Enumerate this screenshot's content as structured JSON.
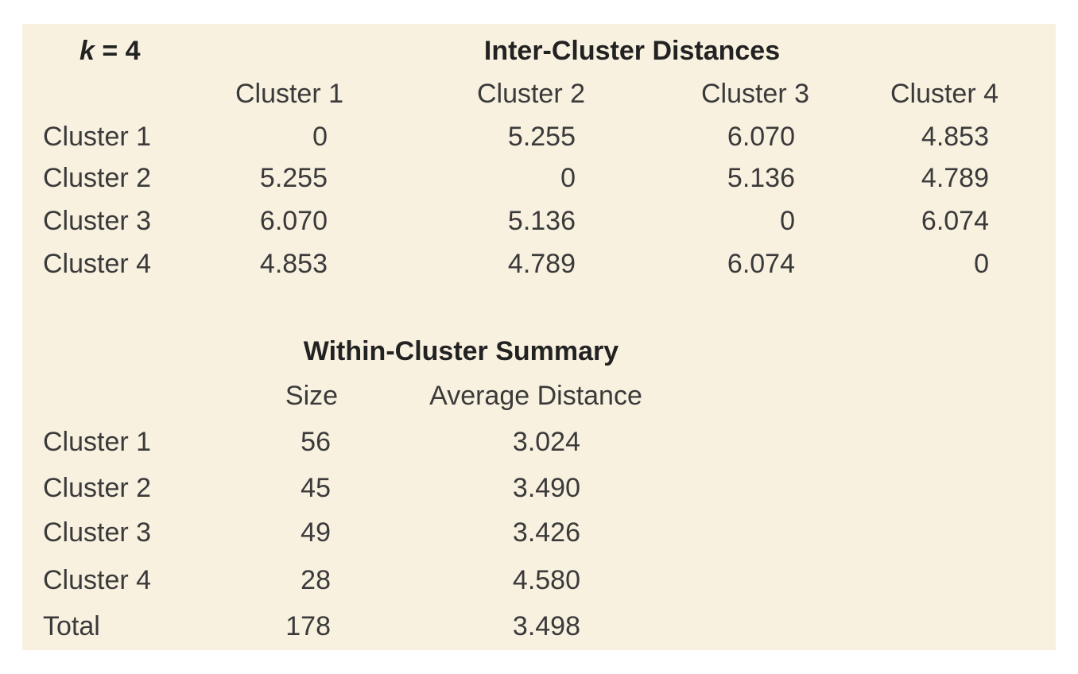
{
  "inter": {
    "k_var": "k",
    "k_value": " = 4",
    "title": "Inter-Cluster Distances",
    "columns": [
      "Cluster 1",
      "Cluster 2",
      "Cluster 3",
      "Cluster 4"
    ],
    "rows": [
      {
        "label": "Cluster 1",
        "values": [
          "0",
          "5.255",
          "6.070",
          "4.853"
        ]
      },
      {
        "label": "Cluster 2",
        "values": [
          "5.255",
          "0",
          "5.136",
          "4.789"
        ]
      },
      {
        "label": "Cluster 3",
        "values": [
          "6.070",
          "5.136",
          "0",
          "6.074"
        ]
      },
      {
        "label": "Cluster 4",
        "values": [
          "4.853",
          "4.789",
          "6.074",
          "0"
        ]
      }
    ]
  },
  "within": {
    "title": "Within-Cluster Summary",
    "columns": [
      "Size",
      "Average Distance"
    ],
    "rows": [
      {
        "label": "Cluster 1",
        "size": "56",
        "avg": "3.024"
      },
      {
        "label": "Cluster 2",
        "size": "45",
        "avg": "3.490"
      },
      {
        "label": "Cluster 3",
        "size": "49",
        "avg": "3.426"
      },
      {
        "label": "Cluster 4",
        "size": "28",
        "avg": "4.580"
      },
      {
        "label": "Total",
        "size": "178",
        "avg": "3.498"
      }
    ]
  },
  "colors": {
    "panel_background": "#f9f1e0",
    "text": "#3a3a3a",
    "header_text": "#222222"
  }
}
